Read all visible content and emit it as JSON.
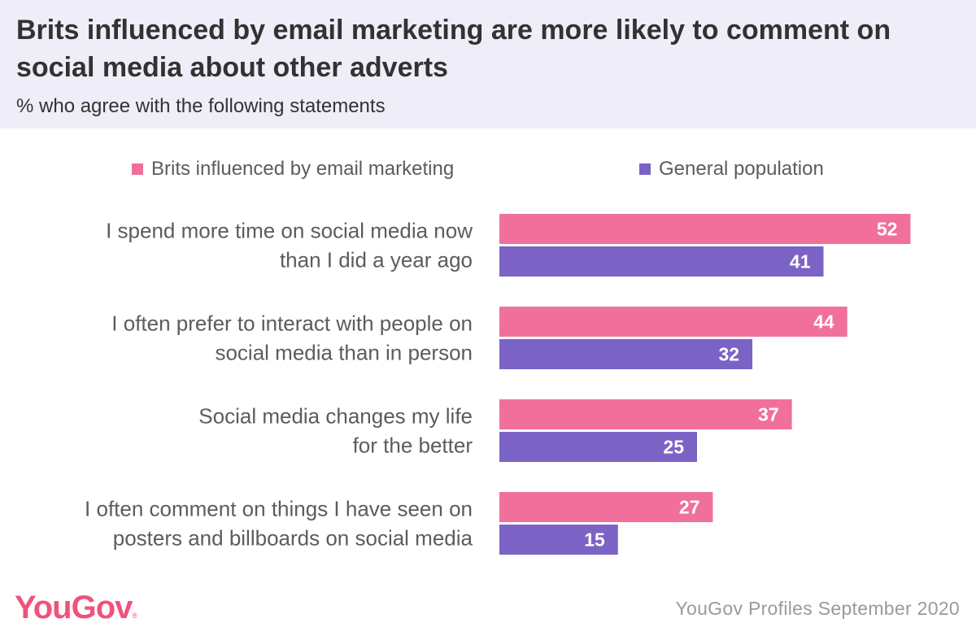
{
  "header": {
    "title": "Brits influenced by email marketing are more likely to comment on social media about other adverts",
    "subtitle": "% who agree with the following statements"
  },
  "legend": [
    {
      "label": "Brits influenced by email marketing",
      "color": "#f0709b"
    },
    {
      "label": "General population",
      "color": "#7b63c6"
    }
  ],
  "chart_data": {
    "type": "bar",
    "orientation": "horizontal",
    "title": "Brits influenced by email marketing are more likely to comment on social media about other adverts",
    "subtitle": "% who agree with the following statements",
    "categories": [
      [
        "I spend more time on social media now",
        "than I did a year ago"
      ],
      [
        "I often prefer to interact with people on",
        "social media than in person"
      ],
      [
        "Social media changes my life",
        "for the better"
      ],
      [
        "I often comment on things I have seen on",
        "posters and billboards on social media"
      ]
    ],
    "series": [
      {
        "name": "Brits influenced by email marketing",
        "color": "#f0709b",
        "values": [
          52,
          44,
          37,
          27
        ]
      },
      {
        "name": "General population",
        "color": "#7b63c6",
        "values": [
          41,
          32,
          25,
          15
        ]
      }
    ],
    "xlim": [
      0,
      60
    ],
    "grid": false,
    "legend_position": "top"
  },
  "footer": {
    "logo_text": "YouGov",
    "logo_mark": "®",
    "source": "YouGov Profiles September 2020"
  }
}
